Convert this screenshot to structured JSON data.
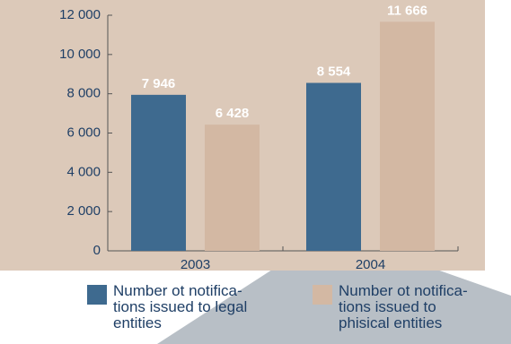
{
  "chart_data": {
    "type": "bar",
    "categories": [
      "2003",
      "2004"
    ],
    "series": [
      {
        "name": "Number ot notifica-\ntions issued to legal\nentities",
        "color": "#3e6a8f",
        "values": [
          7946,
          8554
        ],
        "value_labels": [
          "7 946",
          "8 554"
        ]
      },
      {
        "name": "Number ot notifica-\ntions issued to\nphisical entities",
        "color": "#d3b8a3",
        "values": [
          6428,
          11666
        ],
        "value_labels": [
          "6 428",
          "11 666"
        ]
      }
    ],
    "ylim": [
      0,
      12000
    ],
    "yticks": [
      0,
      {
        "value": 2000,
        "label": "2 000"
      },
      {
        "value": 4000,
        "label": "4 000"
      },
      {
        "value": 6000,
        "label": "6 000"
      },
      {
        "value": 8000,
        "label": "8 000"
      },
      {
        "value": 10000,
        "label": "10 000"
      },
      {
        "value": 12000,
        "label": "12 000"
      }
    ],
    "legend": "bottom"
  }
}
